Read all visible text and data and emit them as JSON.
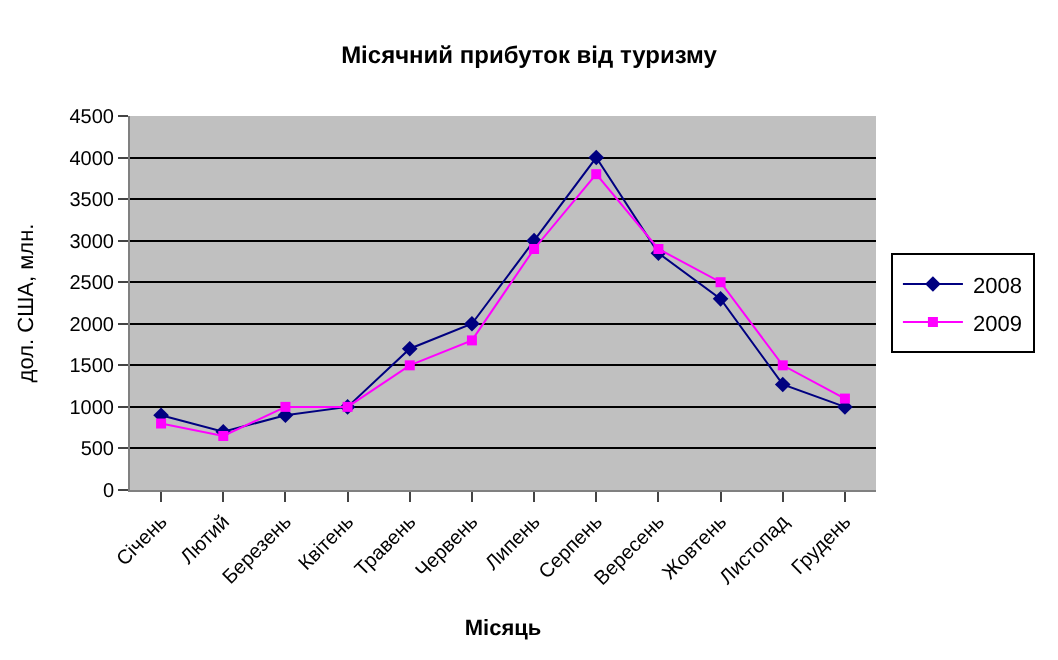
{
  "chart_data": {
    "type": "line",
    "title": "Місячний прибуток від туризму",
    "xlabel": "Місяць",
    "ylabel": "дол. США, млн.",
    "categories": [
      "Січень",
      "Лютий",
      "Березень",
      "Квітень",
      "Травень",
      "Червень",
      "Липень",
      "Серпень",
      "Вересень",
      "Жовтень",
      "Листопад",
      "Грудень"
    ],
    "series": [
      {
        "name": "2008",
        "color": "#000080",
        "marker": "diamond",
        "values": [
          900,
          700,
          900,
          1000,
          1700,
          2000,
          3000,
          4000,
          2850,
          2300,
          1270,
          1000
        ]
      },
      {
        "name": "2009",
        "color": "#ff00ff",
        "marker": "square",
        "values": [
          800,
          650,
          1000,
          1000,
          1500,
          1800,
          2900,
          3800,
          2900,
          2500,
          1500,
          1100
        ]
      }
    ],
    "ylim": [
      0,
      4500
    ],
    "yticks": [
      0,
      500,
      1000,
      1500,
      2000,
      2500,
      3000,
      3500,
      4000,
      4500
    ],
    "grid": "y",
    "legend": "right",
    "line_style": "solid"
  }
}
